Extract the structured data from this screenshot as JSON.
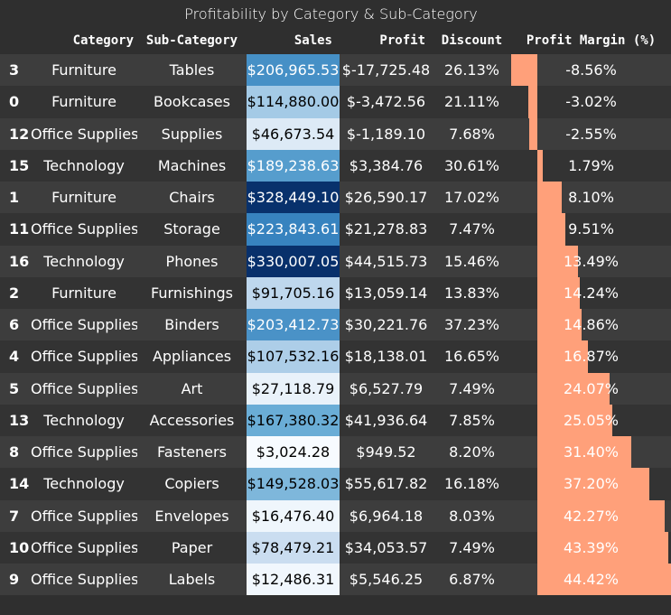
{
  "caption": "Profitability by Category & Sub-Category",
  "columns": {
    "index": "",
    "category": "Category",
    "sub_category": "Sub-Category",
    "sales": "Sales",
    "profit": "Profit",
    "discount": "Discount",
    "profit_margin": "Profit Margin (%)"
  },
  "colors": {
    "background": "#2f2f2f",
    "row_odd": "#3d3d3d",
    "row_even": "#333333",
    "bar": "#ffa07a",
    "sales_scale": [
      "#f7fbff",
      "#c6dbef",
      "#6baed6",
      "#2171b5",
      "#08306b"
    ]
  },
  "margin_range": [
    -8.56,
    44.42
  ],
  "sales_range": [
    3024.28,
    330007.05
  ],
  "rows": [
    {
      "index": "3",
      "category": "Furniture",
      "sub_category": "Tables",
      "sales": "$206,965.53",
      "sales_value": 206965.53,
      "profit": "$-17,725.48",
      "discount": "26.13%",
      "margin": "-8.56%",
      "margin_value": -8.56
    },
    {
      "index": "0",
      "category": "Furniture",
      "sub_category": "Bookcases",
      "sales": "$114,880.00",
      "sales_value": 114880.0,
      "profit": "$-3,472.56",
      "discount": "21.11%",
      "margin": "-3.02%",
      "margin_value": -3.02
    },
    {
      "index": "12",
      "category": "Office Supplies",
      "sub_category": "Supplies",
      "sales": "$46,673.54",
      "sales_value": 46673.54,
      "profit": "$-1,189.10",
      "discount": "7.68%",
      "margin": "-2.55%",
      "margin_value": -2.55
    },
    {
      "index": "15",
      "category": "Technology",
      "sub_category": "Machines",
      "sales": "$189,238.63",
      "sales_value": 189238.63,
      "profit": "$3,384.76",
      "discount": "30.61%",
      "margin": "1.79%",
      "margin_value": 1.79
    },
    {
      "index": "1",
      "category": "Furniture",
      "sub_category": "Chairs",
      "sales": "$328,449.10",
      "sales_value": 328449.1,
      "profit": "$26,590.17",
      "discount": "17.02%",
      "margin": "8.10%",
      "margin_value": 8.1
    },
    {
      "index": "11",
      "category": "Office Supplies",
      "sub_category": "Storage",
      "sales": "$223,843.61",
      "sales_value": 223843.61,
      "profit": "$21,278.83",
      "discount": "7.47%",
      "margin": "9.51%",
      "margin_value": 9.51
    },
    {
      "index": "16",
      "category": "Technology",
      "sub_category": "Phones",
      "sales": "$330,007.05",
      "sales_value": 330007.05,
      "profit": "$44,515.73",
      "discount": "15.46%",
      "margin": "13.49%",
      "margin_value": 13.49
    },
    {
      "index": "2",
      "category": "Furniture",
      "sub_category": "Furnishings",
      "sales": "$91,705.16",
      "sales_value": 91705.16,
      "profit": "$13,059.14",
      "discount": "13.83%",
      "margin": "14.24%",
      "margin_value": 14.24
    },
    {
      "index": "6",
      "category": "Office Supplies",
      "sub_category": "Binders",
      "sales": "$203,412.73",
      "sales_value": 203412.73,
      "profit": "$30,221.76",
      "discount": "37.23%",
      "margin": "14.86%",
      "margin_value": 14.86
    },
    {
      "index": "4",
      "category": "Office Supplies",
      "sub_category": "Appliances",
      "sales": "$107,532.16",
      "sales_value": 107532.16,
      "profit": "$18,138.01",
      "discount": "16.65%",
      "margin": "16.87%",
      "margin_value": 16.87
    },
    {
      "index": "5",
      "category": "Office Supplies",
      "sub_category": "Art",
      "sales": "$27,118.79",
      "sales_value": 27118.79,
      "profit": "$6,527.79",
      "discount": "7.49%",
      "margin": "24.07%",
      "margin_value": 24.07
    },
    {
      "index": "13",
      "category": "Technology",
      "sub_category": "Accessories",
      "sales": "$167,380.32",
      "sales_value": 167380.32,
      "profit": "$41,936.64",
      "discount": "7.85%",
      "margin": "25.05%",
      "margin_value": 25.05
    },
    {
      "index": "8",
      "category": "Office Supplies",
      "sub_category": "Fasteners",
      "sales": "$3,024.28",
      "sales_value": 3024.28,
      "profit": "$949.52",
      "discount": "8.20%",
      "margin": "31.40%",
      "margin_value": 31.4
    },
    {
      "index": "14",
      "category": "Technology",
      "sub_category": "Copiers",
      "sales": "$149,528.03",
      "sales_value": 149528.03,
      "profit": "$55,617.82",
      "discount": "16.18%",
      "margin": "37.20%",
      "margin_value": 37.2
    },
    {
      "index": "7",
      "category": "Office Supplies",
      "sub_category": "Envelopes",
      "sales": "$16,476.40",
      "sales_value": 16476.4,
      "profit": "$6,964.18",
      "discount": "8.03%",
      "margin": "42.27%",
      "margin_value": 42.27
    },
    {
      "index": "10",
      "category": "Office Supplies",
      "sub_category": "Paper",
      "sales": "$78,479.21",
      "sales_value": 78479.21,
      "profit": "$34,053.57",
      "discount": "7.49%",
      "margin": "43.39%",
      "margin_value": 43.39
    },
    {
      "index": "9",
      "category": "Office Supplies",
      "sub_category": "Labels",
      "sales": "$12,486.31",
      "sales_value": 12486.31,
      "profit": "$5,546.25",
      "discount": "6.87%",
      "margin": "44.42%",
      "margin_value": 44.42
    }
  ]
}
